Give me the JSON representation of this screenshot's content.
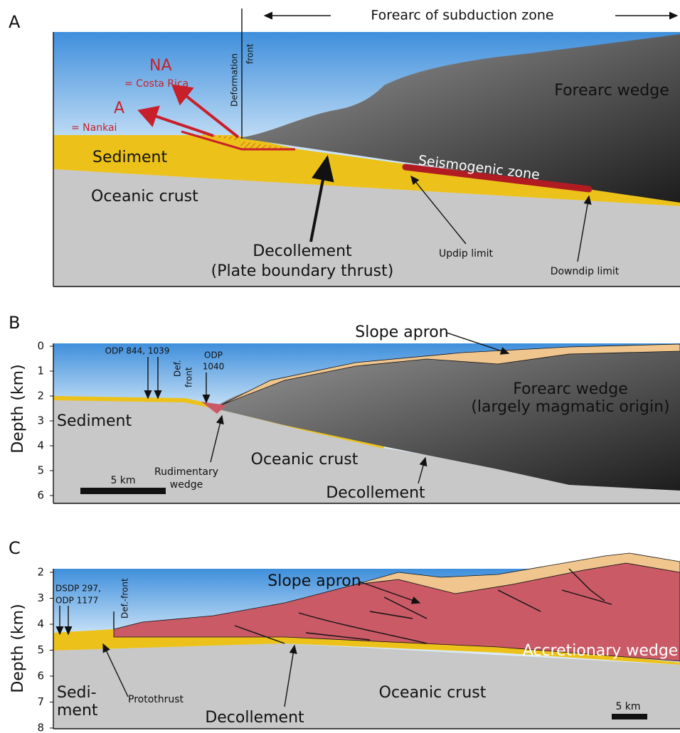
{
  "heading": "Forearc of subduction zone",
  "panels": [
    {
      "letter": "A",
      "na": "NA",
      "costa_rica": "= Costa Rica",
      "a": "A",
      "nankai": "= Nankai",
      "deformation_front": [
        "Deformation",
        "front"
      ],
      "forearc_wedge": "Forearc wedge",
      "sediment": "Sediment",
      "seismogenic_zone": "Seismogenic zone",
      "oceanic_crust": "Oceanic crust",
      "decollement": [
        "Decollement",
        "(Plate boundary thrust)"
      ],
      "updip": "Updip limit",
      "downdip": "Downdip limit"
    },
    {
      "letter": "B",
      "axis_title": "Depth (km)",
      "depth_ticks": [
        0,
        1,
        2,
        3,
        4,
        5,
        6
      ],
      "slope_apron": "Slope apron",
      "odp_844": "ODP 844, 1039",
      "def_front": [
        "Def.",
        "front"
      ],
      "odp_1040": [
        "ODP",
        "1040"
      ],
      "forearc_wedge": [
        "Forearc wedge",
        "(largely magmatic origin)"
      ],
      "sediment": "Sediment",
      "oceanic_crust": "Oceanic crust",
      "rudimentary_wedge": [
        "Rudimentary",
        "wedge"
      ],
      "scale": "5 km",
      "decollement": "Decollement"
    },
    {
      "letter": "C",
      "axis_title": "Depth (km)",
      "depth_ticks": [
        2,
        3,
        4,
        5,
        6,
        7,
        8
      ],
      "slope_apron": "Slope apron",
      "dsdp": [
        "DSDP 297,",
        "ODP 1177"
      ],
      "def_front": "Def.-front",
      "accretionary_wedge": "Accretionary wedge",
      "sediment": [
        "Sedi-",
        "ment"
      ],
      "protothrust": "Protothrust",
      "oceanic_crust": "Oceanic crust",
      "decollement": "Decollement",
      "scale": "5 km"
    }
  ]
}
